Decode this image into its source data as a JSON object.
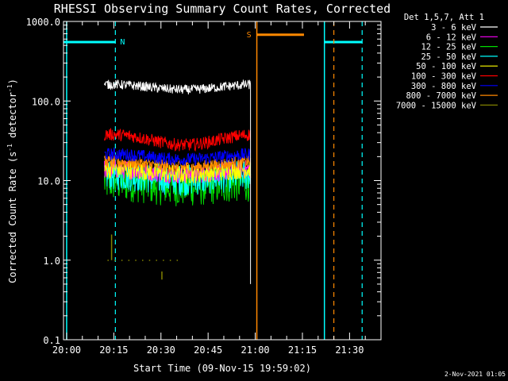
{
  "chart_data": {
    "type": "line",
    "title": "RHESSI Observing Summary Count Rates, Corrected",
    "xlabel": "Start Time (09-Nov-15 19:59:02)",
    "ylabel_main": "Corrected Count Rate (s",
    "ylabel_sup1": "-1",
    "ylabel_mid": " detector",
    "ylabel_sup2": "-1",
    "ylabel_end": ")",
    "y_scale": "log",
    "ylim": [
      0.1,
      1000
    ],
    "xlim_minutes": [
      -1,
      100
    ],
    "x_ticks": [
      {
        "label": "20:00",
        "minute": 0
      },
      {
        "label": "20:15",
        "minute": 15
      },
      {
        "label": "20:30",
        "minute": 30
      },
      {
        "label": "20:45",
        "minute": 45
      },
      {
        "label": "21:00",
        "minute": 60
      },
      {
        "label": "21:15",
        "minute": 75
      },
      {
        "label": "21:30",
        "minute": 90
      }
    ],
    "y_ticks": [
      {
        "label": "1000.0",
        "value": 1000
      },
      {
        "label": "100.0",
        "value": 100
      },
      {
        "label": "10.0",
        "value": 10
      },
      {
        "label": "1.0",
        "value": 1
      },
      {
        "label": "0.1",
        "value": 0.1
      }
    ],
    "legend_header": "Det 1,5,7, Att 1",
    "legend_placement": "right",
    "series": [
      {
        "name": "3 - 6 keV",
        "color": "#ffffff",
        "level": 150,
        "noise": 0.06
      },
      {
        "name": "6 - 12 keV",
        "color": "#ff00ff",
        "level": 13,
        "noise": 0.12
      },
      {
        "name": "12 - 25 keV",
        "color": "#00dd00",
        "level": 9,
        "noise": 0.25
      },
      {
        "name": "25 - 50 keV",
        "color": "#00ffff",
        "level": 11,
        "noise": 0.2
      },
      {
        "name": "50 - 100 keV",
        "color": "#ffff00",
        "level": 13,
        "noise": 0.12
      },
      {
        "name": "100 - 300 keV",
        "color": "#ff0000",
        "level": 33,
        "noise": 0.08
      },
      {
        "name": "300 - 800 keV",
        "color": "#0000ff",
        "level": 20,
        "noise": 0.08
      },
      {
        "name": "800 - 7000 keV",
        "color": "#ff8800",
        "level": 16,
        "noise": 0.08
      },
      {
        "name": "7000 - 15000 keV",
        "color": "#808000",
        "level": 1.0,
        "noise": 0.0
      }
    ],
    "data_interval_minutes": [
      12,
      58.5
    ],
    "flags": [
      {
        "label": "N",
        "name": "night",
        "color": "#00ffff",
        "value": 550,
        "segments": [
          [
            -1,
            15.5
          ],
          [
            82,
            94
          ]
        ],
        "dashed_lines": [
          15.5,
          94
        ],
        "solid_lines": [
          82
        ]
      },
      {
        "label": "S",
        "name": "saa",
        "color": "#ff8800",
        "value": 680,
        "segments": [
          [
            60.5,
            75.5
          ]
        ],
        "dashed_lines": [
          85
        ],
        "solid_lines": [
          60.5
        ]
      }
    ],
    "start_edge_marker_minute": 0
  },
  "footer": {
    "timestamp": "2-Nov-2021 01:05"
  }
}
